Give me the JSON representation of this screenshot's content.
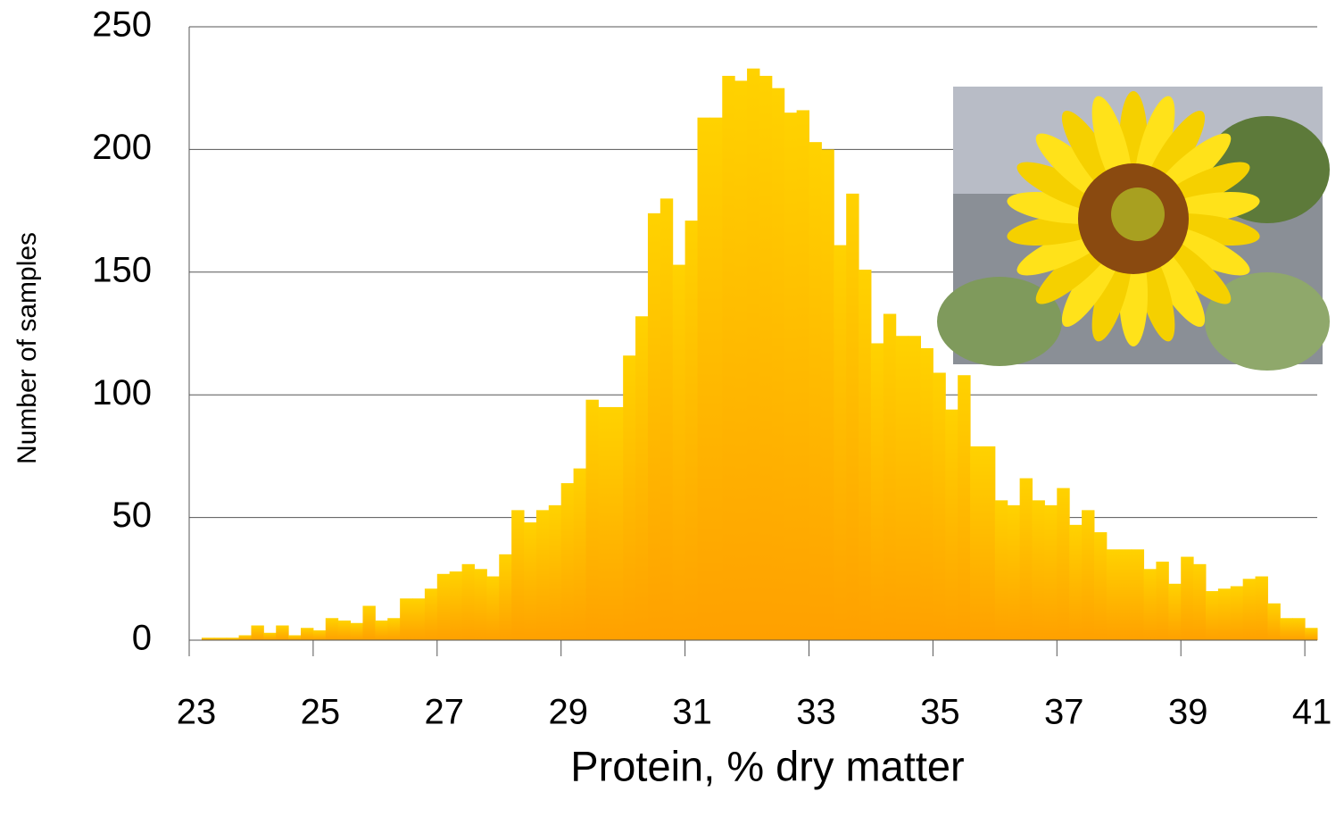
{
  "chart_data": {
    "type": "histogram",
    "x_label": "Protein, % dry matter",
    "y_label": "Number of samples",
    "bins": [
      23,
      23.2,
      23.4,
      23.6,
      23.8,
      24,
      24.2,
      24.4,
      24.6,
      24.8,
      25,
      25.2,
      25.4,
      25.6,
      25.8,
      26,
      26.2,
      26.4,
      26.6,
      26.8,
      27,
      27.2,
      27.4,
      27.6,
      27.8,
      28,
      28.2,
      28.4,
      28.6,
      28.8,
      29,
      29.2,
      29.4,
      29.6,
      29.8,
      30,
      30.2,
      30.4,
      30.6,
      30.8,
      31,
      31.2,
      31.4,
      31.6,
      31.8,
      32,
      32.2,
      32.4,
      32.6,
      32.8,
      33,
      33.2,
      33.4,
      33.6,
      33.8,
      34,
      34.2,
      34.4,
      34.6,
      34.8,
      35,
      35.2,
      35.4,
      35.6,
      35.8,
      36,
      36.2,
      36.4,
      36.6,
      36.8,
      37,
      37.2,
      37.4,
      37.6,
      37.8,
      38,
      38.2,
      38.4,
      38.6,
      38.8,
      39,
      39.2,
      39.4,
      39.6,
      39.8,
      40,
      40.2,
      40.4,
      40.6,
      40.8,
      41,
      41.2
    ],
    "values": [
      0,
      1,
      1,
      1,
      2,
      6,
      3,
      6,
      2,
      5,
      4,
      9,
      8,
      7,
      14,
      8,
      9,
      17,
      17,
      21,
      27,
      28,
      31,
      29,
      26,
      35,
      53,
      48,
      53,
      55,
      64,
      70,
      98,
      95,
      95,
      116,
      132,
      174,
      180,
      153,
      171,
      213,
      213,
      230,
      228,
      233,
      230,
      225,
      215,
      216,
      203,
      200,
      161,
      182,
      151,
      121,
      133,
      124,
      124,
      119,
      109,
      94,
      108,
      79,
      79,
      57,
      55,
      66,
      57,
      55,
      62,
      47,
      53,
      44,
      37,
      37,
      37,
      29,
      32,
      23,
      34,
      31,
      20,
      21,
      22,
      25,
      26,
      15,
      9,
      9,
      5
    ],
    "colors": [
      "#ffd200",
      "#ffa000"
    ],
    "xlim": [
      23,
      41.2
    ],
    "ylim": [
      0,
      250
    ],
    "xticks": [
      23,
      25,
      27,
      29,
      31,
      33,
      35,
      37,
      39,
      41
    ],
    "yticks": [
      0,
      50,
      100,
      150,
      200,
      250
    ],
    "grid": true
  }
}
